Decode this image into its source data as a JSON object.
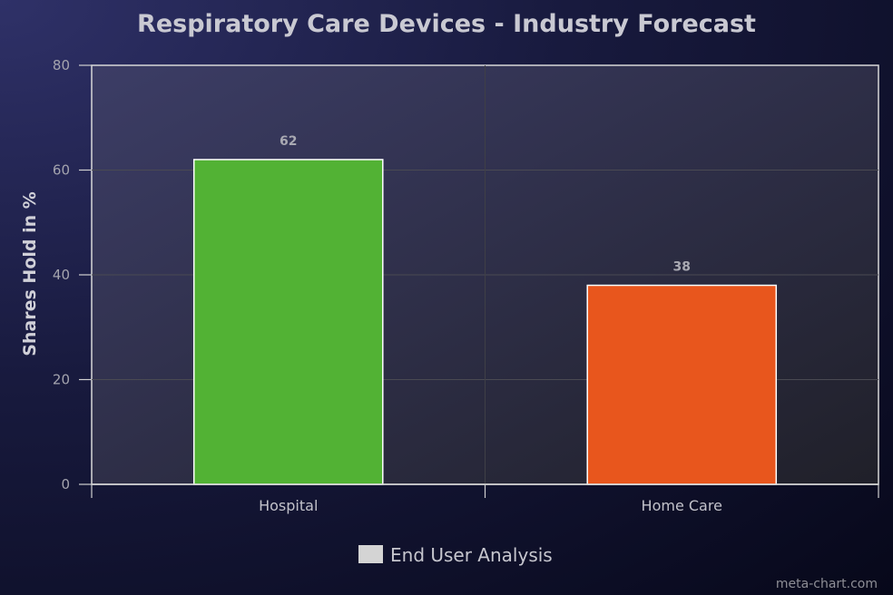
{
  "chart_data": {
    "type": "bar",
    "title": "Respiratory Care Devices - Industry Forecast",
    "xlabel": "",
    "ylabel": "Shares Hold in %",
    "categories": [
      "Hospital",
      "Home Care"
    ],
    "values": [
      62,
      38
    ],
    "bar_colors": [
      "#52b234",
      "#e8561d"
    ],
    "ylim": [
      0,
      80
    ],
    "yticks": [
      0,
      20,
      40,
      60,
      80
    ],
    "grid": true,
    "data_labels": true,
    "legend": {
      "position": "bottom",
      "entries": [
        {
          "label": "End User Analysis",
          "color": "#d4d4d4"
        }
      ]
    }
  },
  "credit": "meta-chart.com"
}
